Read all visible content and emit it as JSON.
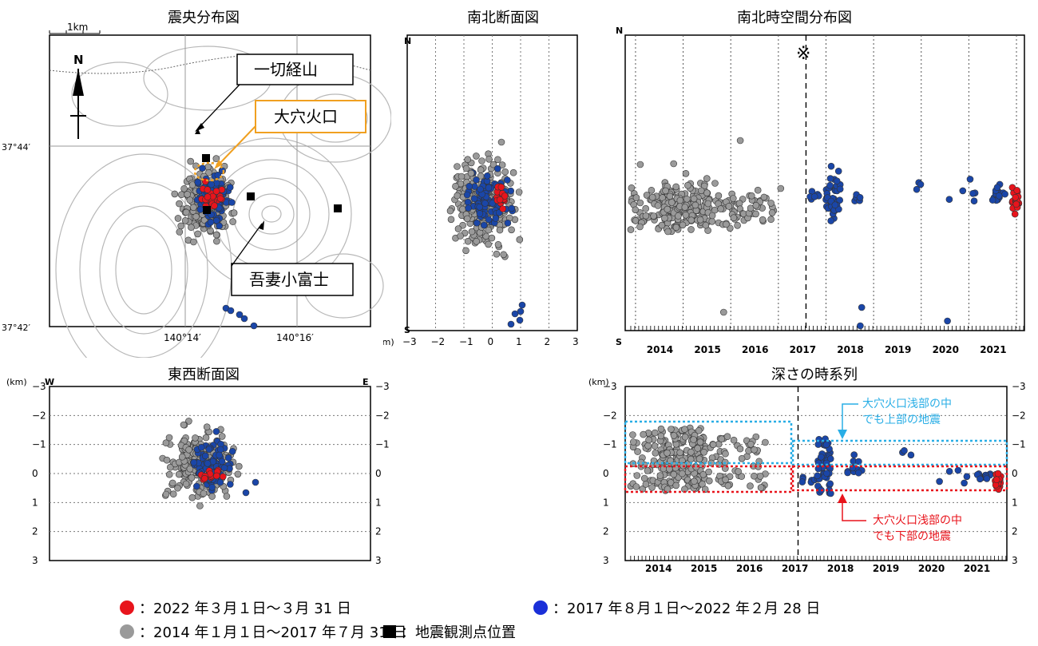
{
  "colors": {
    "red": "#e8141c",
    "blue": "#1a46a8",
    "gray": "#9a9a9a",
    "station": "#000000",
    "orange": "#f0a020",
    "cyan": "#29aee6"
  },
  "titles": {
    "epicenter": "震央分布図",
    "ns_section": "南北断面図",
    "ns_time": "南北時空間分布図",
    "ew_section": "東西断面図",
    "depth_time": "深さの時系列"
  },
  "map": {
    "scale": "1km",
    "north": "N",
    "lat_top": "37°44′",
    "lat_bottom": "37°42′",
    "lon_left": "140°14′",
    "lon_right": "140°16′",
    "label_issaikyo": "一切経山",
    "label_oana": "大穴火口",
    "label_azuma": "吾妻小富士"
  },
  "ns_section": {
    "n": "N",
    "s": "S",
    "unit": "(km)",
    "ticks": [
      "−3",
      "−2",
      "−1",
      "0",
      "1",
      "2",
      "3"
    ]
  },
  "ns_time": {
    "n": "N",
    "s": "S",
    "mark": "※",
    "years": [
      "2014",
      "2015",
      "2016",
      "2017",
      "2018",
      "2019",
      "2020",
      "2021"
    ]
  },
  "ew_section": {
    "unit": "(km)",
    "w": "W",
    "e": "E",
    "ticks": [
      "−3",
      "−2",
      "−1",
      "0",
      "1",
      "2",
      "3"
    ]
  },
  "depth_time": {
    "unit": "(km)",
    "ticks": [
      "−3",
      "−2",
      "−1",
      "0",
      "1",
      "2",
      "3"
    ],
    "years": [
      "2014",
      "2015",
      "2016",
      "2017",
      "2018",
      "2019",
      "2020",
      "2021"
    ],
    "ann_upper_1": "大穴火口浅部の中",
    "ann_upper_2": "でも上部の地震",
    "ann_lower_1": "大穴火口浅部の中",
    "ann_lower_2": "でも下部の地震"
  },
  "legend": {
    "red": "：2022 年３月１日～３月 31 日",
    "blue": "：2017 年８月１日～2022 年２月 28 日",
    "gray": "：2014 年１月１日～2017 年７月 31 日",
    "station": "：地震観測点位置"
  },
  "chart_data": [
    {
      "type": "scatter",
      "title": "震央分布図",
      "xlabel": "",
      "ylabel": "",
      "series": [
        {
          "name": "2014 年１月１日～2017 年７月 31 日",
          "color": "gray",
          "cluster": {
            "lon": 140.235,
            "lat": 37.722,
            "count": 450
          }
        },
        {
          "name": "2017 年８月１日～2022 年２月 28 日",
          "color": "blue",
          "cluster": {
            "lon": 140.238,
            "lat": 37.722,
            "count": 160
          }
        },
        {
          "name": "2022 年３月１日～３月 31 日",
          "color": "red",
          "cluster": {
            "lon": 140.237,
            "lat": 37.723,
            "count": 30
          }
        },
        {
          "name": "地震観測点位置",
          "stations": [
            {
              "lon": 140.233,
              "lat": 37.729
            },
            {
              "lon": 140.251,
              "lat": 37.724
            },
            {
              "lon": 140.236,
              "lat": 37.72
            },
            {
              "lon": 140.278,
              "lat": 37.72
            }
          ]
        }
      ]
    },
    {
      "type": "scatter",
      "title": "南北断面図",
      "xlabel": "(km)",
      "xlim": [
        -3,
        3
      ],
      "note": "depth-style section; cluster centered near x 0, outliers at x ≈ 0.5–0.9 south"
    },
    {
      "type": "scatter",
      "title": "南北時空間分布図",
      "x": [
        "2014",
        "2015",
        "2016",
        "2017",
        "2018",
        "2019",
        "2020",
        "2021"
      ],
      "note": "gray events 2014–2017 (dense 2014.7–2015.6), blue events 2017.6–2021.9, red events 2022.2"
    },
    {
      "type": "scatter",
      "title": "東西断面図",
      "ylabel": "(km)",
      "ylim": [
        -3,
        3
      ],
      "note": "cluster between depth −1.5 and 0.8 km, centered near x 0"
    },
    {
      "type": "scatter",
      "title": "深さの時系列",
      "ylabel": "(km)",
      "ylim": [
        -3,
        3
      ],
      "x": [
        "2014",
        "2015",
        "2016",
        "2017",
        "2018",
        "2019",
        "2020",
        "2021"
      ],
      "note": "gray depths −1.6 to 0.7 km (2014–2017.6); blue depths −1.2 to 0.8 km (2017.6–2021.9); red depths 0 to 0.5 km (2022.2)"
    }
  ]
}
